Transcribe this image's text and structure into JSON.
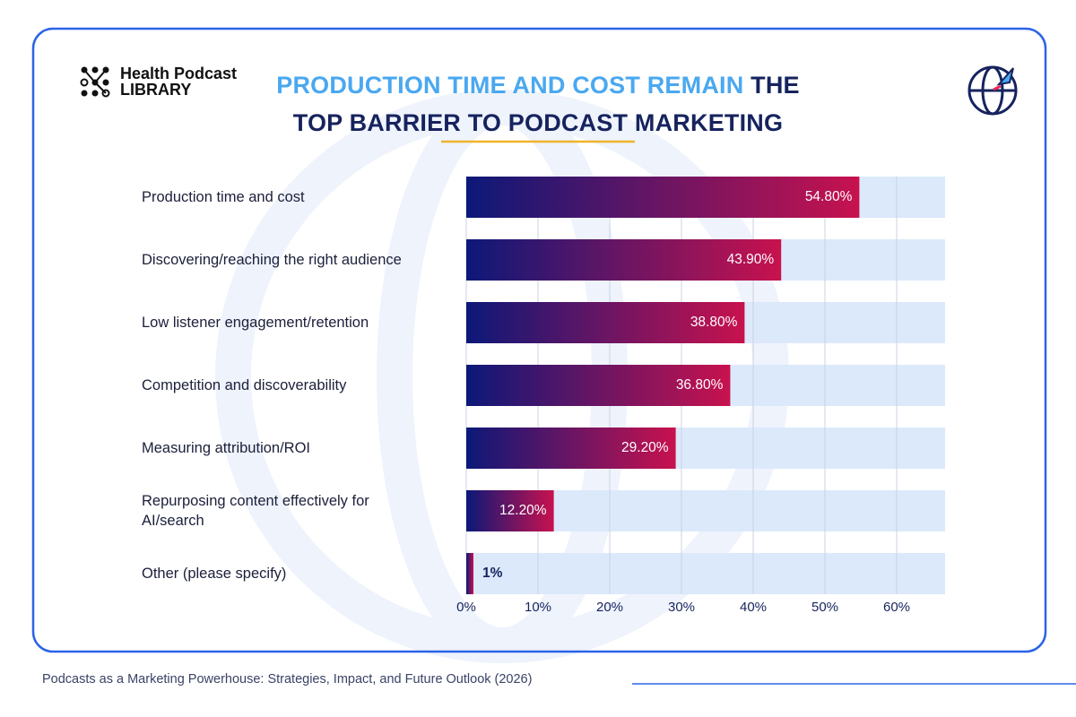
{
  "brand": {
    "line1": "Health Podcast",
    "line2": "LIBRARY"
  },
  "source": "Podcasts as a Marketing Powerhouse: Strategies, Impact, and Future Outlook (2026)",
  "chart_data": {
    "type": "bar",
    "orientation": "horizontal",
    "title": {
      "highlight": "PRODUCTION TIME AND COST REMAIN",
      "text": "THE TOP BARRIER TO PODCAST MARKETING"
    },
    "categories": [
      "Production time and cost",
      "Discovering/reaching the right audience",
      "Low listener engagement/retention",
      "Competition and discoverability",
      "Measuring attribution/ROI",
      "Repurposing content effectively for AI/search",
      "Other (please specify)"
    ],
    "values": [
      54.8,
      43.9,
      38.8,
      36.8,
      29.2,
      12.2,
      1
    ],
    "value_labels": [
      "54.80%",
      "43.90%",
      "38.80%",
      "36.80%",
      "29.20%",
      "12.20%",
      "1%"
    ],
    "gradient": [
      "#0c1878",
      "#c8124e"
    ],
    "track_color": "#dce9fb",
    "xlim": [
      0,
      66.75
    ],
    "xticks": [
      {
        "value": 0,
        "label": "0%"
      },
      {
        "value": 10,
        "label": "10%"
      },
      {
        "value": 20,
        "label": "20%"
      },
      {
        "value": 30,
        "label": "30%"
      },
      {
        "value": 40,
        "label": "40%"
      },
      {
        "value": 50,
        "label": "50%"
      },
      {
        "value": 60,
        "label": "60%"
      }
    ],
    "grid": true
  }
}
